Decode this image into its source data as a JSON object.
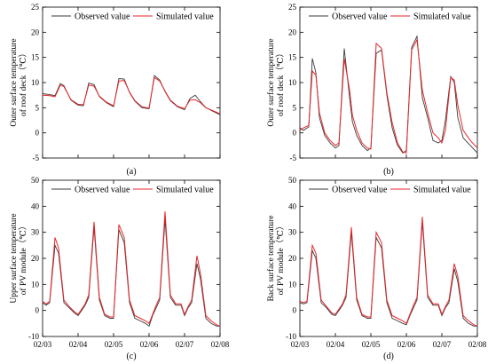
{
  "legend": {
    "observed": "Observed value",
    "simulated": "Simulated value"
  },
  "colors": {
    "observed": "#3a3a3a",
    "simulated": "#e8262a",
    "axis": "#000000"
  },
  "chart_data": [
    {
      "type": "line",
      "caption": "(a)",
      "ylabel": [
        "Outer surface temperature",
        "of roof deck（℃）"
      ],
      "xlim": [
        0,
        5
      ],
      "ylim": [
        -5,
        25
      ],
      "yticks": [
        -5,
        0,
        5,
        10,
        15,
        20,
        25
      ],
      "xticks": [],
      "grid": false,
      "legend_position": "top-center",
      "series": [
        {
          "key": "observed",
          "name": "Observed value",
          "x": [
            0,
            0.2,
            0.35,
            0.5,
            0.6,
            0.8,
            1.0,
            1.15,
            1.3,
            1.45,
            1.6,
            1.8,
            2.0,
            2.15,
            2.3,
            2.45,
            2.6,
            2.8,
            3.0,
            3.15,
            3.3,
            3.45,
            3.6,
            3.8,
            4.0,
            4.15,
            4.3,
            4.45,
            4.6,
            4.8,
            5.0
          ],
          "y": [
            7.8,
            7.6,
            7.4,
            9.8,
            9.4,
            6.5,
            5.5,
            5.4,
            9.9,
            9.6,
            7.2,
            6.0,
            5.2,
            10.8,
            10.7,
            8.0,
            6.3,
            5.0,
            4.8,
            11.4,
            10.5,
            8.2,
            6.4,
            5.2,
            4.6,
            6.8,
            7.5,
            6.2,
            5.0,
            4.3,
            3.6
          ]
        },
        {
          "key": "simulated",
          "name": "Simulated value",
          "x": [
            0,
            0.2,
            0.35,
            0.5,
            0.6,
            0.8,
            1.0,
            1.15,
            1.3,
            1.45,
            1.6,
            1.8,
            2.0,
            2.15,
            2.3,
            2.45,
            2.6,
            2.8,
            3.0,
            3.15,
            3.3,
            3.45,
            3.6,
            3.8,
            4.0,
            4.15,
            4.3,
            4.45,
            4.6,
            4.8,
            5.0
          ],
          "y": [
            7.5,
            7.4,
            7.2,
            9.5,
            9.2,
            6.6,
            5.7,
            5.6,
            9.5,
            9.3,
            7.3,
            6.1,
            5.4,
            10.3,
            10.4,
            8.1,
            6.4,
            5.2,
            4.9,
            11.0,
            10.3,
            8.3,
            6.5,
            5.3,
            4.8,
            6.5,
            6.6,
            6.0,
            5.0,
            4.4,
            3.8
          ]
        }
      ]
    },
    {
      "type": "line",
      "caption": "(b)",
      "ylabel": [
        "Outer surface temperature",
        "of roof deck（℃）"
      ],
      "xlim": [
        0,
        5
      ],
      "ylim": [
        -5,
        25
      ],
      "yticks": [
        -5,
        0,
        5,
        10,
        15,
        20,
        25
      ],
      "xticks": [],
      "grid": false,
      "legend_position": "top-center",
      "series": [
        {
          "key": "observed",
          "name": "Observed value",
          "x": [
            0,
            0.1,
            0.25,
            0.35,
            0.45,
            0.55,
            0.7,
            0.85,
            1.0,
            1.1,
            1.25,
            1.4,
            1.48,
            1.6,
            1.75,
            1.9,
            2.0,
            2.15,
            2.3,
            2.45,
            2.6,
            2.75,
            2.9,
            3.0,
            3.15,
            3.3,
            3.45,
            3.6,
            3.75,
            3.9,
            4.0,
            4.1,
            4.25,
            4.35,
            4.45,
            4.6,
            4.8,
            5.0
          ],
          "y": [
            1,
            0.5,
            1.2,
            14.8,
            12,
            3,
            -0.5,
            -2,
            -3,
            -2.5,
            16.8,
            7,
            2.2,
            -0.5,
            -2.5,
            -3.5,
            -3,
            15.8,
            16.5,
            7.5,
            1,
            -2.5,
            -4,
            -3.5,
            17,
            19.2,
            7,
            3,
            -1.5,
            -2,
            -1.5,
            2.5,
            11.2,
            10,
            3,
            -1,
            -2.5,
            -4
          ]
        },
        {
          "key": "simulated",
          "name": "Simulated value",
          "x": [
            0,
            0.1,
            0.25,
            0.35,
            0.45,
            0.55,
            0.7,
            0.85,
            1.0,
            1.1,
            1.25,
            1.4,
            1.48,
            1.6,
            1.75,
            1.9,
            2.0,
            2.15,
            2.3,
            2.45,
            2.6,
            2.75,
            2.9,
            3.0,
            3.15,
            3.3,
            3.45,
            3.6,
            3.75,
            3.9,
            4.0,
            4.1,
            4.25,
            4.35,
            4.45,
            4.6,
            4.8,
            5.0
          ],
          "y": [
            0.5,
            1,
            1.5,
            12.3,
            11.5,
            4,
            0,
            -1.5,
            -2.5,
            -2,
            14.8,
            8.5,
            3.5,
            0.5,
            -2,
            -3,
            -3.2,
            17.8,
            16.8,
            8,
            2,
            -2,
            -3.8,
            -4,
            16.5,
            18.5,
            8.5,
            4,
            0,
            -1,
            -2,
            0.5,
            11,
            10.5,
            5.5,
            0.5,
            -1.5,
            -3
          ]
        }
      ]
    },
    {
      "type": "line",
      "caption": "(c)",
      "ylabel": [
        "Upper surface temperature",
        "of PV module（℃）"
      ],
      "xlim": [
        0,
        5
      ],
      "ylim": [
        -10,
        50
      ],
      "yticks": [
        -10,
        0,
        10,
        20,
        30,
        40,
        50
      ],
      "xticks": [
        "02/03",
        "02/04",
        "02/05",
        "02/06",
        "02/07",
        "02/08"
      ],
      "grid": false,
      "legend_position": "top-center",
      "series": [
        {
          "key": "observed",
          "name": "Observed value",
          "x": [
            0,
            0.1,
            0.2,
            0.35,
            0.45,
            0.6,
            0.75,
            0.9,
            1.0,
            1.1,
            1.2,
            1.3,
            1.45,
            1.6,
            1.75,
            1.9,
            2.0,
            2.15,
            2.3,
            2.45,
            2.6,
            2.75,
            2.9,
            3.0,
            3.1,
            3.2,
            3.3,
            3.45,
            3.6,
            3.75,
            3.9,
            4.0,
            4.1,
            4.2,
            4.35,
            4.45,
            4.6,
            4.75,
            4.9,
            5.0
          ],
          "y": [
            3,
            2,
            3,
            25,
            22,
            3,
            1,
            -1,
            -2,
            0,
            2,
            5,
            32,
            4,
            -2,
            -3,
            -3,
            31,
            26,
            3,
            -3,
            -4,
            -5,
            -6,
            -2,
            1,
            4,
            35,
            5,
            2,
            2,
            -2,
            1,
            3,
            18,
            12,
            -3,
            -5,
            -6,
            -6
          ]
        },
        {
          "key": "simulated",
          "name": "Simulated value",
          "x": [
            0,
            0.1,
            0.2,
            0.35,
            0.45,
            0.6,
            0.75,
            0.9,
            1.0,
            1.1,
            1.2,
            1.3,
            1.45,
            1.6,
            1.75,
            1.9,
            2.0,
            2.15,
            2.3,
            2.45,
            2.6,
            2.75,
            2.9,
            3.0,
            3.1,
            3.2,
            3.3,
            3.45,
            3.6,
            3.75,
            3.9,
            4.0,
            4.1,
            4.2,
            4.35,
            4.45,
            4.6,
            4.75,
            4.9,
            5.0
          ],
          "y": [
            3.5,
            2.5,
            3.5,
            28,
            24,
            4,
            1.5,
            -0.5,
            -1.5,
            0.5,
            2.5,
            6,
            34,
            5,
            -1.5,
            -2.5,
            -2.5,
            33,
            28,
            4,
            -2,
            -3,
            -4,
            -5,
            -1.5,
            2,
            5,
            38,
            6,
            2.5,
            2.5,
            -1.5,
            1.5,
            4,
            21,
            14,
            -2,
            -4,
            -5.5,
            -6
          ]
        }
      ]
    },
    {
      "type": "line",
      "caption": "(d)",
      "ylabel": [
        "Back surface temperature",
        "of PV module（℃）"
      ],
      "xlim": [
        0,
        5
      ],
      "ylim": [
        -10,
        50
      ],
      "yticks": [
        -10,
        0,
        10,
        20,
        30,
        40,
        50
      ],
      "xticks": [
        "02/03",
        "02/04",
        "02/05",
        "02/06",
        "02/07",
        "02/08"
      ],
      "grid": false,
      "legend_position": "top-center",
      "series": [
        {
          "key": "observed",
          "name": "Observed value",
          "x": [
            0,
            0.1,
            0.2,
            0.35,
            0.45,
            0.6,
            0.75,
            0.9,
            1.0,
            1.1,
            1.2,
            1.3,
            1.45,
            1.6,
            1.75,
            1.9,
            2.0,
            2.15,
            2.3,
            2.45,
            2.6,
            2.75,
            2.9,
            3.0,
            3.1,
            3.2,
            3.3,
            3.45,
            3.6,
            3.75,
            3.9,
            4.0,
            4.1,
            4.2,
            4.35,
            4.45,
            4.6,
            4.75,
            4.9,
            5.0
          ],
          "y": [
            3,
            2.5,
            3,
            23,
            20,
            3,
            1,
            -1.5,
            -2,
            0,
            2,
            5,
            30,
            4,
            -2,
            -3,
            -3,
            28,
            24,
            3,
            -3,
            -4,
            -5,
            -5.5,
            -2,
            1,
            4,
            34,
            5,
            2,
            2,
            -2,
            1,
            3,
            16,
            11,
            -3,
            -5,
            -6,
            -6
          ]
        },
        {
          "key": "simulated",
          "name": "Simulated value",
          "x": [
            0,
            0.1,
            0.2,
            0.35,
            0.45,
            0.6,
            0.75,
            0.9,
            1.0,
            1.1,
            1.2,
            1.3,
            1.45,
            1.6,
            1.75,
            1.9,
            2.0,
            2.15,
            2.3,
            2.45,
            2.6,
            2.75,
            2.9,
            3.0,
            3.1,
            3.2,
            3.3,
            3.45,
            3.6,
            3.75,
            3.9,
            4.0,
            4.1,
            4.2,
            4.35,
            4.45,
            4.6,
            4.75,
            4.9,
            5.0
          ],
          "y": [
            3.5,
            3,
            3.5,
            25,
            22,
            4,
            1.5,
            -1,
            -1.5,
            0.5,
            2.5,
            6,
            32,
            5,
            -1.5,
            -2.5,
            -2.5,
            30,
            26,
            4,
            -2,
            -3,
            -4,
            -5,
            -1.5,
            2,
            5,
            36,
            6,
            2.5,
            2.5,
            -1.5,
            1.5,
            4,
            18,
            13,
            -2,
            -4,
            -5.5,
            -6
          ]
        }
      ]
    }
  ]
}
